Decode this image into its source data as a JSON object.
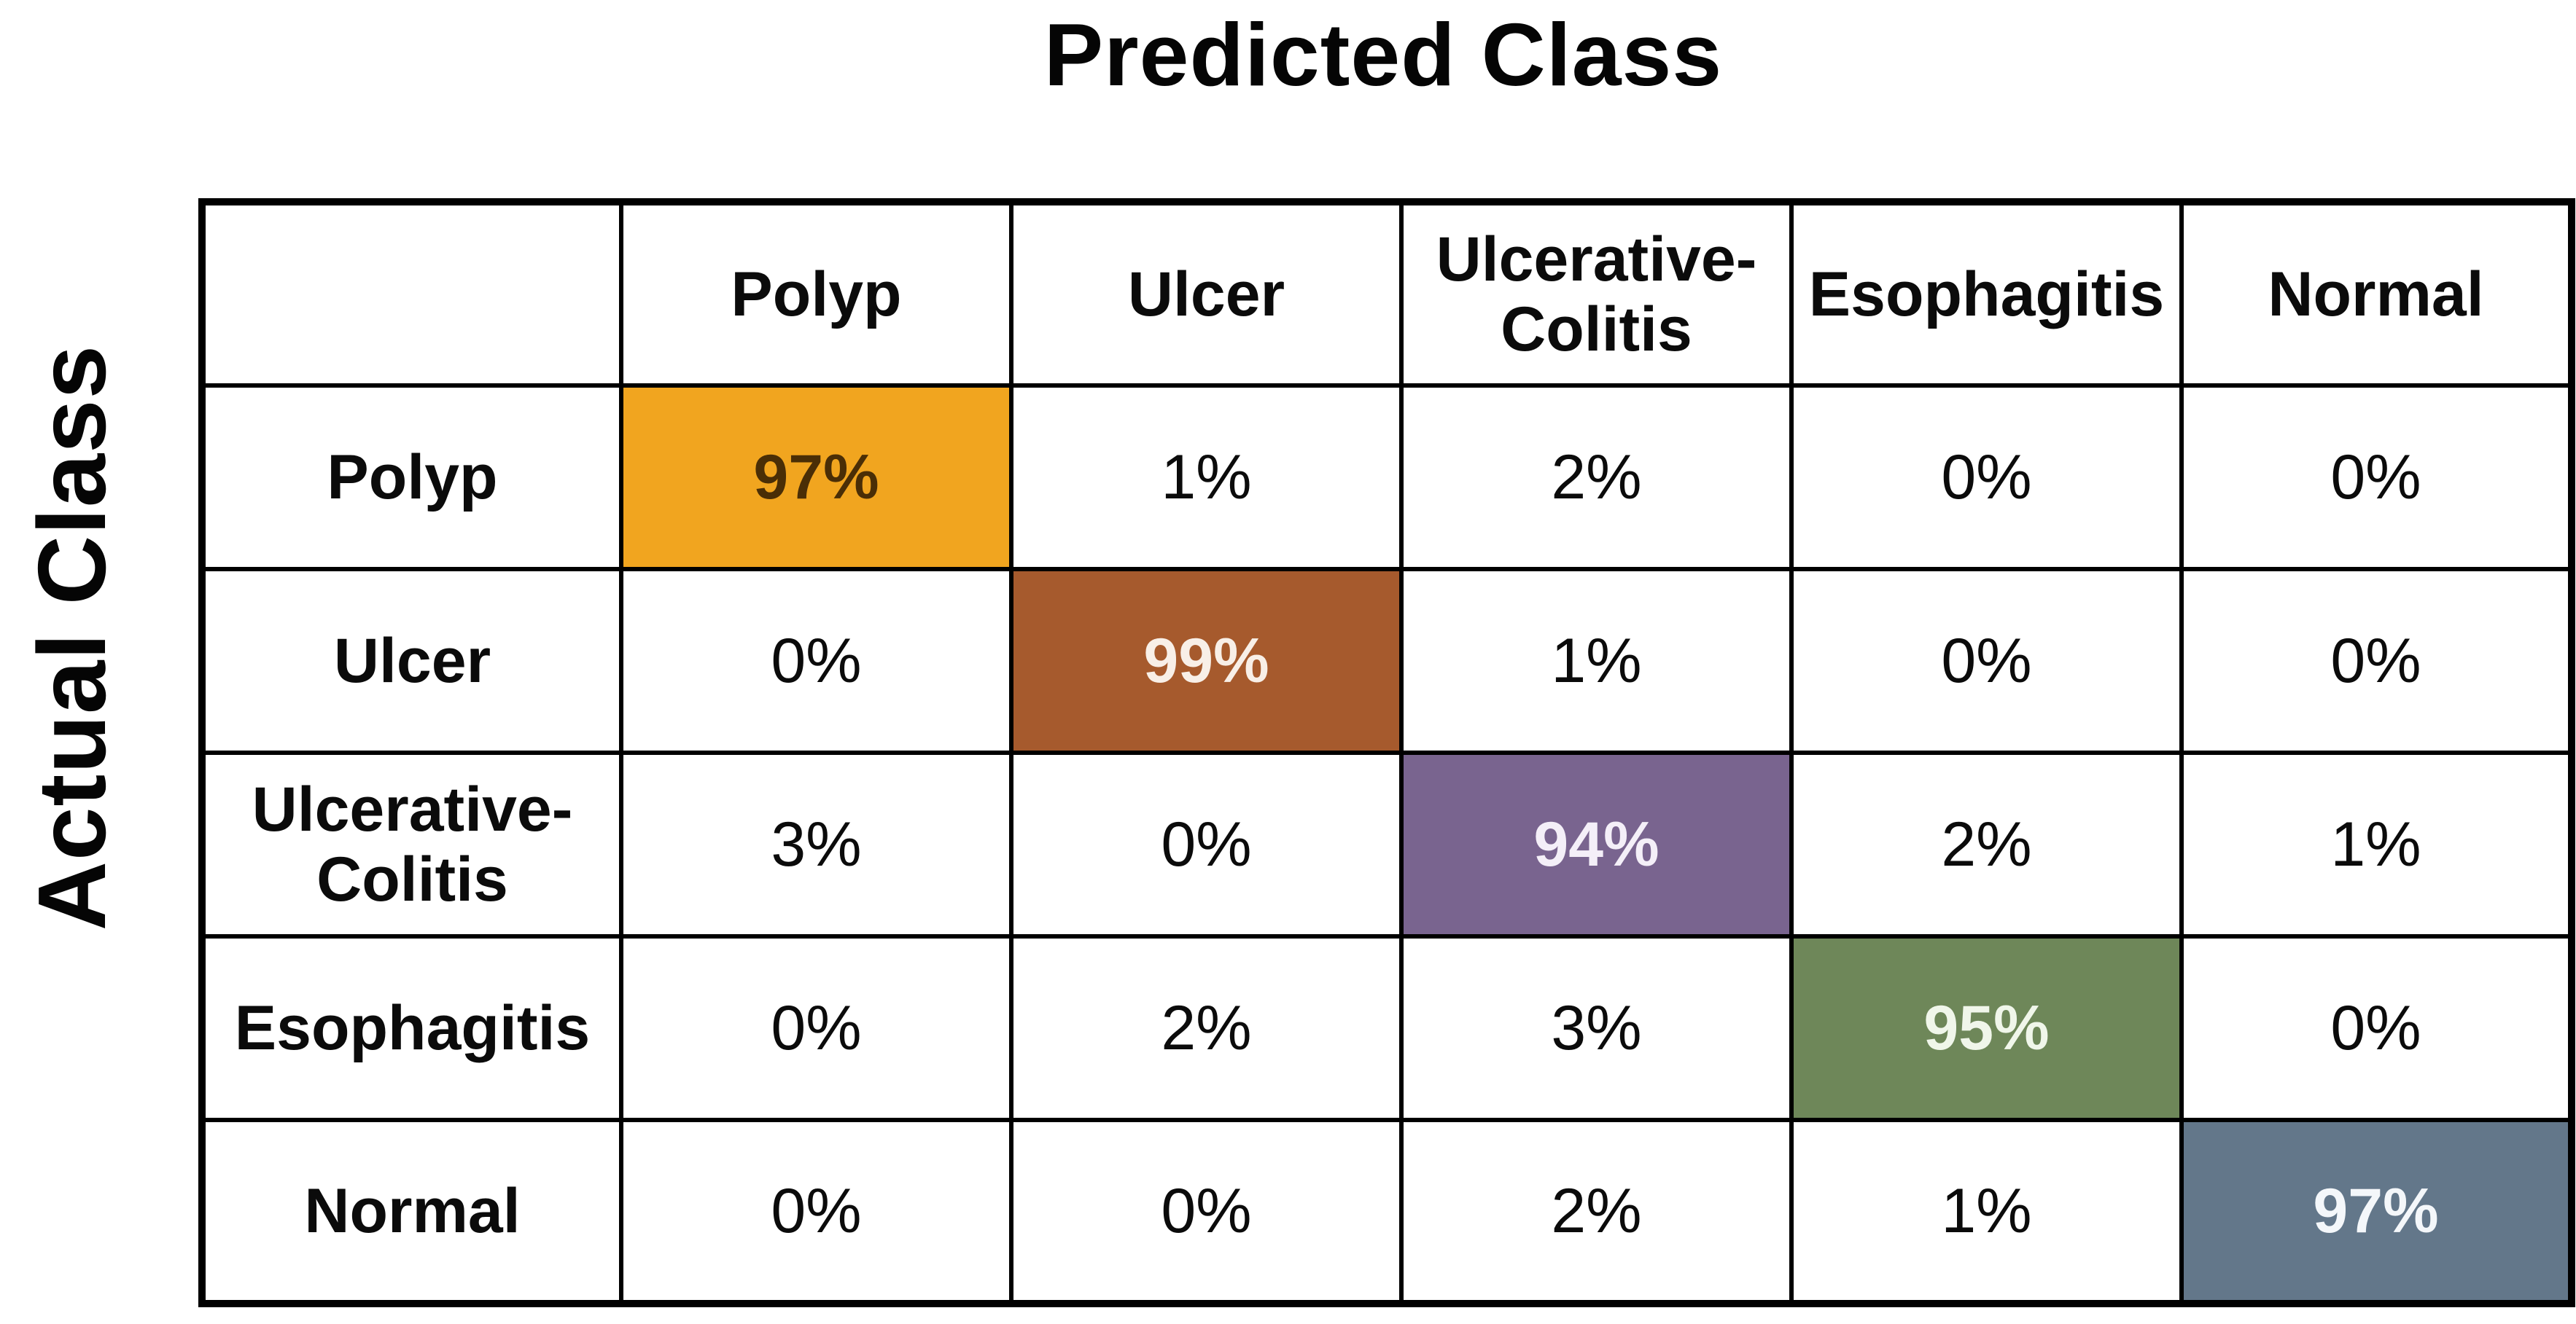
{
  "figure": {
    "title": "Predicted Class",
    "y_axis_label": "Actual Class"
  },
  "chart_data": {
    "type": "heatmap",
    "subtype": "confusion-matrix",
    "title": "Predicted Class",
    "xlabel": "Predicted Class",
    "ylabel": "Actual Class",
    "x_categories": [
      "Polyp",
      "Ulcer",
      "Ulcerative-Colitis",
      "Esophagitis",
      "Normal"
    ],
    "y_categories": [
      "Polyp",
      "Ulcer",
      "Ulcerative-Colitis",
      "Esophagitis",
      "Normal"
    ],
    "values_percent": [
      [
        97,
        1,
        2,
        0,
        0
      ],
      [
        0,
        99,
        1,
        0,
        0
      ],
      [
        3,
        0,
        94,
        2,
        1
      ],
      [
        0,
        2,
        3,
        95,
        0
      ],
      [
        0,
        0,
        2,
        1,
        97
      ]
    ],
    "cell_labels": [
      [
        "97%",
        "1%",
        "2%",
        "0%",
        "0%"
      ],
      [
        "0%",
        "99%",
        "1%",
        "0%",
        "0%"
      ],
      [
        "3%",
        "0%",
        "94%",
        "2%",
        "1%"
      ],
      [
        "0%",
        "2%",
        "3%",
        "95%",
        "0%"
      ],
      [
        "0%",
        "0%",
        "2%",
        "1%",
        "97%"
      ]
    ],
    "diagonal_colors": [
      "#F1A51F",
      "#A65A2D",
      "#79648F",
      "#6E8759",
      "#63778A"
    ],
    "diagonal_text_colors": [
      "#4A2E06",
      "#F8EFE7",
      "#F4EFF8",
      "#F0F6EA",
      "#F4F7FA"
    ],
    "off_diagonal_background": "#FFFFFF",
    "grid_color": "#000000",
    "grid": "on",
    "legend": "none"
  }
}
